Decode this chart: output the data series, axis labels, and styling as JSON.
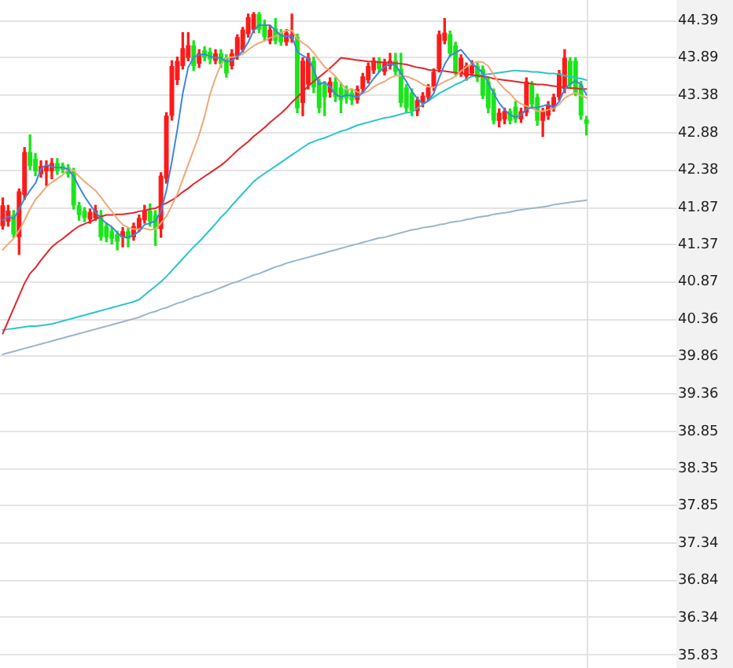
{
  "chart_data": {
    "type": "candlestick",
    "categories": [
      null,
      null,
      null,
      null,
      null,
      null,
      null,
      null,
      null,
      null,
      null,
      null,
      null,
      null,
      null,
      null,
      null,
      null,
      null,
      null,
      null,
      null,
      null,
      null,
      null,
      null,
      null,
      null,
      null,
      null,
      null,
      null,
      null,
      null,
      null,
      null,
      null,
      null,
      null,
      null,
      null,
      null,
      null,
      null,
      null,
      null,
      null,
      null,
      null,
      null,
      null,
      null,
      null,
      null,
      null,
      null,
      null,
      null,
      null,
      null,
      null,
      null,
      null,
      null,
      null,
      null,
      null,
      null,
      null,
      null,
      null,
      null,
      null,
      null,
      null,
      null,
      null,
      null,
      null,
      null,
      null,
      null,
      null,
      null,
      null,
      null,
      null,
      null,
      null,
      null,
      null,
      null,
      null,
      null,
      null,
      null,
      null,
      null,
      null,
      null,
      null,
      null,
      null,
      null,
      null,
      null,
      null,
      null
    ],
    "ohlc": [
      [
        41.62,
        42.0,
        41.58,
        41.9
      ],
      [
        41.68,
        41.9,
        41.62,
        41.83
      ],
      [
        41.77,
        41.83,
        41.47,
        41.51
      ],
      [
        41.47,
        42.12,
        41.24,
        42.09
      ],
      [
        42.04,
        42.68,
        41.98,
        42.62
      ],
      [
        42.62,
        42.85,
        42.38,
        42.43
      ],
      [
        42.53,
        42.6,
        42.3,
        42.36
      ],
      [
        42.32,
        42.5,
        42.28,
        42.43
      ],
      [
        42.36,
        42.5,
        42.17,
        42.43
      ],
      [
        42.36,
        42.53,
        42.26,
        42.47
      ],
      [
        42.47,
        42.53,
        42.32,
        42.36
      ],
      [
        42.43,
        42.47,
        42.34,
        42.38
      ],
      [
        42.41,
        42.45,
        42.28,
        42.32
      ],
      [
        42.36,
        42.4,
        41.85,
        41.9
      ],
      [
        41.9,
        41.94,
        41.7,
        41.77
      ],
      [
        41.83,
        41.87,
        41.68,
        41.73
      ],
      [
        41.71,
        41.85,
        41.66,
        41.81
      ],
      [
        41.73,
        41.9,
        41.7,
        41.83
      ],
      [
        41.77,
        41.83,
        41.43,
        41.47
      ],
      [
        41.62,
        41.66,
        41.41,
        41.47
      ],
      [
        41.55,
        41.6,
        41.38,
        41.45
      ],
      [
        41.51,
        41.55,
        41.3,
        41.41
      ],
      [
        41.47,
        41.6,
        41.34,
        41.55
      ],
      [
        41.55,
        41.6,
        41.34,
        41.45
      ],
      [
        41.47,
        41.66,
        41.43,
        41.62
      ],
      [
        41.58,
        41.77,
        41.55,
        41.73
      ],
      [
        41.7,
        41.9,
        41.66,
        41.83
      ],
      [
        41.83,
        41.92,
        41.62,
        41.68
      ],
      [
        41.77,
        41.83,
        41.36,
        41.58
      ],
      [
        41.58,
        42.34,
        41.47,
        42.3
      ],
      [
        42.26,
        43.15,
        42.2,
        43.11
      ],
      [
        43.11,
        43.85,
        43.05,
        43.78
      ],
      [
        43.59,
        43.9,
        43.53,
        43.85
      ],
      [
        43.78,
        44.23,
        43.74,
        44.02
      ],
      [
        43.89,
        44.23,
        43.85,
        44.06
      ],
      [
        44.06,
        44.12,
        43.72,
        43.78
      ],
      [
        43.81,
        44.0,
        43.76,
        43.95
      ],
      [
        43.99,
        44.04,
        43.85,
        43.89
      ],
      [
        43.97,
        44.02,
        43.81,
        43.87
      ],
      [
        43.85,
        44.0,
        43.81,
        43.95
      ],
      [
        43.95,
        44.0,
        43.76,
        43.81
      ],
      [
        43.89,
        43.93,
        43.63,
        43.68
      ],
      [
        43.78,
        44.0,
        43.74,
        43.95
      ],
      [
        43.91,
        44.2,
        43.87,
        44.17
      ],
      [
        44.0,
        44.3,
        43.97,
        44.27
      ],
      [
        44.21,
        44.48,
        44.17,
        44.44
      ],
      [
        44.27,
        44.5,
        44.23,
        44.48
      ],
      [
        44.48,
        44.5,
        44.23,
        44.27
      ],
      [
        44.34,
        44.4,
        44.12,
        44.17
      ],
      [
        44.12,
        44.32,
        44.08,
        44.27
      ],
      [
        44.29,
        44.42,
        44.08,
        44.12
      ],
      [
        44.23,
        44.27,
        44.06,
        44.1
      ],
      [
        44.1,
        44.27,
        44.06,
        44.23
      ],
      [
        44.15,
        44.48,
        44.1,
        44.21
      ],
      [
        44.17,
        44.21,
        43.15,
        43.21
      ],
      [
        43.28,
        43.89,
        43.11,
        43.85
      ],
      [
        43.53,
        43.95,
        43.47,
        43.89
      ],
      [
        43.85,
        43.9,
        43.42,
        43.49
      ],
      [
        43.57,
        43.6,
        43.15,
        43.21
      ],
      [
        43.53,
        43.57,
        43.11,
        43.36
      ],
      [
        43.42,
        43.62,
        43.36,
        43.57
      ],
      [
        43.57,
        43.62,
        43.3,
        43.36
      ],
      [
        43.49,
        43.55,
        43.15,
        43.32
      ],
      [
        43.47,
        43.51,
        43.28,
        43.34
      ],
      [
        43.42,
        43.47,
        43.26,
        43.32
      ],
      [
        43.32,
        43.51,
        43.28,
        43.47
      ],
      [
        43.47,
        43.68,
        43.42,
        43.64
      ],
      [
        43.59,
        43.82,
        43.55,
        43.78
      ],
      [
        43.72,
        43.89,
        43.68,
        43.85
      ],
      [
        43.85,
        43.89,
        43.7,
        43.74
      ],
      [
        43.7,
        43.87,
        43.66,
        43.82
      ],
      [
        43.78,
        43.95,
        43.74,
        43.85
      ],
      [
        43.85,
        43.95,
        43.66,
        43.7
      ],
      [
        43.74,
        43.95,
        43.23,
        43.28
      ],
      [
        43.49,
        43.53,
        43.15,
        43.21
      ],
      [
        43.42,
        43.47,
        43.11,
        43.17
      ],
      [
        43.17,
        43.36,
        43.11,
        43.32
      ],
      [
        43.28,
        43.42,
        43.23,
        43.38
      ],
      [
        43.36,
        43.53,
        43.32,
        43.49
      ],
      [
        43.49,
        43.74,
        43.45,
        43.7
      ],
      [
        43.74,
        44.25,
        43.7,
        44.21
      ],
      [
        44.12,
        44.42,
        44.08,
        44.23
      ],
      [
        44.21,
        44.25,
        43.91,
        43.95
      ],
      [
        44.06,
        44.1,
        43.66,
        43.7
      ],
      [
        43.68,
        43.93,
        43.64,
        43.89
      ],
      [
        43.64,
        43.82,
        43.59,
        43.78
      ],
      [
        43.68,
        43.85,
        43.64,
        43.78
      ],
      [
        43.78,
        43.82,
        43.57,
        43.62
      ],
      [
        43.74,
        43.78,
        43.34,
        43.38
      ],
      [
        43.57,
        43.62,
        43.15,
        43.21
      ],
      [
        43.42,
        43.47,
        43.0,
        43.04
      ],
      [
        43.04,
        43.2,
        42.96,
        43.15
      ],
      [
        43.06,
        43.21,
        43.0,
        43.17
      ],
      [
        43.17,
        43.2,
        43.0,
        43.04
      ],
      [
        43.23,
        43.3,
        43.02,
        43.06
      ],
      [
        43.06,
        43.21,
        43.02,
        43.17
      ],
      [
        43.15,
        43.62,
        43.11,
        43.57
      ],
      [
        43.53,
        43.57,
        43.21,
        43.26
      ],
      [
        43.36,
        43.4,
        42.98,
        43.04
      ],
      [
        43.04,
        43.21,
        42.83,
        43.17
      ],
      [
        43.11,
        43.3,
        43.06,
        43.26
      ],
      [
        43.21,
        43.4,
        43.17,
        43.36
      ],
      [
        43.36,
        43.72,
        43.32,
        43.68
      ],
      [
        43.47,
        44.0,
        43.42,
        43.89
      ],
      [
        43.85,
        43.89,
        43.49,
        43.53
      ],
      [
        43.85,
        43.89,
        43.38,
        43.42
      ],
      [
        43.53,
        43.57,
        43.06,
        43.11
      ],
      [
        43.06,
        43.1,
        42.85,
        43.0
      ]
    ],
    "colors": [
      "#ff1a1a",
      "#ff1a1a",
      "#19e619",
      "#ff1a1a",
      "#ff1a1a",
      "#19e619",
      "#19e619",
      "#ff1a1a",
      "#ff1a1a",
      "#ff1a1a",
      "#19e619",
      "#19e619",
      "#19e619",
      "#19e619",
      "#19e619",
      "#19e619",
      "#ff1a1a",
      "#ff1a1a",
      "#19e619",
      "#19e619",
      "#19e619",
      "#19e619",
      "#ff1a1a",
      "#19e619",
      "#ff1a1a",
      "#ff1a1a",
      "#ff1a1a",
      "#19e619",
      "#19e619",
      "#ff1a1a",
      "#ff1a1a",
      "#ff1a1a",
      "#ff1a1a",
      "#ff1a1a",
      "#ff1a1a",
      "#19e619",
      "#ff1a1a",
      "#19e619",
      "#19e619",
      "#ff1a1a",
      "#19e619",
      "#19e619",
      "#ff1a1a",
      "#ff1a1a",
      "#ff1a1a",
      "#ff1a1a",
      "#ff1a1a",
      "#19e619",
      "#19e619",
      "#ff1a1a",
      "#19e619",
      "#19e619",
      "#ff1a1a",
      "#ff1a1a",
      "#19e619",
      "#ff1a1a",
      "#ff1a1a",
      "#19e619",
      "#19e619",
      "#19e619",
      "#ff1a1a",
      "#19e619",
      "#19e619",
      "#19e619",
      "#19e619",
      "#ff1a1a",
      "#ff1a1a",
      "#ff1a1a",
      "#ff1a1a",
      "#19e619",
      "#ff1a1a",
      "#ff1a1a",
      "#19e619",
      "#19e619",
      "#19e619",
      "#19e619",
      "#ff1a1a",
      "#ff1a1a",
      "#ff1a1a",
      "#ff1a1a",
      "#ff1a1a",
      "#ff1a1a",
      "#19e619",
      "#19e619",
      "#ff1a1a",
      "#ff1a1a",
      "#ff1a1a",
      "#19e619",
      "#19e619",
      "#19e619",
      "#19e619",
      "#ff1a1a",
      "#ff1a1a",
      "#19e619",
      "#19e619",
      "#ff1a1a",
      "#ff1a1a",
      "#19e619",
      "#19e619",
      "#ff1a1a",
      "#ff1a1a",
      "#ff1a1a",
      "#ff1a1a",
      "#ff1a1a",
      "#19e619",
      "#19e619",
      "#19e619",
      "#19e619"
    ],
    "series": [
      {
        "type": "line",
        "color": "#3d85e0",
        "values": [
          41.7,
          41.75,
          41.72,
          41.85,
          41.99,
          42.1,
          42.2,
          42.39,
          42.45,
          42.42,
          42.41,
          42.41,
          42.39,
          42.29,
          42.15,
          42.02,
          41.91,
          41.81,
          41.72,
          41.66,
          41.61,
          41.53,
          41.47,
          41.47,
          41.5,
          41.55,
          41.64,
          41.66,
          41.69,
          41.82,
          42.1,
          42.49,
          42.92,
          43.41,
          43.76,
          43.9,
          43.93,
          43.94,
          43.91,
          43.89,
          43.89,
          43.84,
          43.85,
          43.91,
          43.98,
          44.1,
          44.26,
          44.33,
          44.33,
          44.33,
          44.26,
          44.19,
          44.18,
          44.19,
          43.97,
          43.92,
          43.88,
          43.73,
          43.53,
          43.56,
          43.5,
          43.4,
          43.36,
          43.39,
          43.38,
          43.36,
          43.42,
          43.51,
          43.61,
          43.7,
          43.77,
          43.81,
          43.79,
          43.68,
          43.57,
          43.44,
          43.34,
          43.27,
          43.31,
          43.41,
          43.62,
          43.8,
          43.92,
          43.96,
          44.0,
          43.91,
          43.82,
          43.75,
          43.69,
          43.55,
          43.41,
          43.28,
          43.19,
          43.12,
          43.09,
          43.12,
          43.2,
          43.22,
          43.22,
          43.24,
          43.26,
          43.22,
          43.3,
          43.47,
          43.54,
          43.58,
          43.53,
          43.39
        ]
      },
      {
        "type": "line",
        "color": "#f0a878",
        "values": [
          41.3,
          41.38,
          41.45,
          41.56,
          41.7,
          41.85,
          41.98,
          42.06,
          42.15,
          42.21,
          42.26,
          42.31,
          42.39,
          42.37,
          42.29,
          42.22,
          42.16,
          42.1,
          42.01,
          41.91,
          41.82,
          41.72,
          41.64,
          41.6,
          41.58,
          41.58,
          41.59,
          41.57,
          41.58,
          41.66,
          41.75,
          41.9,
          42.05,
          42.25,
          42.45,
          42.65,
          42.85,
          43.1,
          43.4,
          43.62,
          43.8,
          43.89,
          43.9,
          43.91,
          43.94,
          44.0,
          44.05,
          44.09,
          44.12,
          44.16,
          44.18,
          44.23,
          44.26,
          44.26,
          44.15,
          44.09,
          44.04,
          43.96,
          43.86,
          43.77,
          43.71,
          43.64,
          43.55,
          43.46,
          43.47,
          43.43,
          43.41,
          43.44,
          43.5,
          43.54,
          43.57,
          43.62,
          43.65,
          43.65,
          43.64,
          43.61,
          43.58,
          43.53,
          43.5,
          43.49,
          43.53,
          43.57,
          43.6,
          43.64,
          43.71,
          43.77,
          43.81,
          43.84,
          43.83,
          43.78,
          43.66,
          43.55,
          43.47,
          43.41,
          43.32,
          43.27,
          43.24,
          43.21,
          43.17,
          43.17,
          43.19,
          43.21,
          43.26,
          43.35,
          43.39,
          43.42,
          43.38,
          43.35
        ]
      },
      {
        "type": "line",
        "color": "#e3262a",
        "values": [
          40.17,
          40.34,
          40.51,
          40.68,
          40.85,
          40.98,
          41.06,
          41.16,
          41.25,
          41.34,
          41.4,
          41.45,
          41.51,
          41.57,
          41.62,
          41.65,
          41.68,
          41.71,
          41.75,
          41.77,
          41.77,
          41.78,
          41.78,
          41.79,
          41.8,
          41.82,
          41.83,
          41.85,
          41.86,
          41.9,
          41.93,
          41.97,
          42.02,
          42.08,
          42.13,
          42.19,
          42.24,
          42.29,
          42.34,
          42.39,
          42.44,
          42.5,
          42.57,
          42.64,
          42.7,
          42.76,
          42.83,
          42.89,
          42.95,
          43.02,
          43.08,
          43.14,
          43.21,
          43.29,
          43.36,
          43.43,
          43.51,
          43.57,
          43.63,
          43.69,
          43.75,
          43.82,
          43.89,
          43.88,
          43.87,
          43.86,
          43.85,
          43.84,
          43.84,
          43.83,
          43.83,
          43.82,
          43.82,
          43.81,
          43.8,
          43.78,
          43.76,
          43.75,
          43.73,
          43.72,
          43.72,
          43.71,
          43.7,
          43.69,
          43.68,
          43.67,
          43.66,
          43.65,
          43.64,
          43.63,
          43.61,
          43.6,
          43.59,
          43.58,
          43.57,
          43.56,
          43.55,
          43.54,
          43.53,
          43.53,
          43.52,
          43.51,
          43.5,
          43.49,
          43.48,
          43.48,
          43.47,
          43.47
        ]
      },
      {
        "type": "line",
        "color": "#29c5cc",
        "values": [
          40.22,
          40.23,
          40.24,
          40.25,
          40.26,
          40.27,
          40.27,
          40.28,
          40.29,
          40.3,
          40.32,
          40.34,
          40.36,
          40.38,
          40.4,
          40.42,
          40.44,
          40.46,
          40.48,
          40.5,
          40.52,
          40.54,
          40.56,
          40.58,
          40.6,
          40.63,
          40.69,
          40.75,
          40.81,
          40.87,
          40.94,
          41.02,
          41.1,
          41.18,
          41.26,
          41.34,
          41.41,
          41.49,
          41.57,
          41.65,
          41.74,
          41.81,
          41.9,
          41.98,
          42.06,
          42.14,
          42.22,
          42.28,
          42.33,
          42.38,
          42.43,
          42.48,
          42.53,
          42.58,
          42.63,
          42.68,
          42.73,
          42.76,
          42.79,
          42.81,
          42.84,
          42.87,
          42.9,
          42.92,
          42.95,
          42.98,
          43.0,
          43.02,
          43.04,
          43.06,
          43.08,
          43.09,
          43.11,
          43.13,
          43.15,
          43.16,
          43.21,
          43.26,
          43.31,
          43.36,
          43.41,
          43.45,
          43.49,
          43.53,
          43.56,
          43.6,
          43.64,
          43.65,
          43.66,
          43.67,
          43.68,
          43.69,
          43.7,
          43.71,
          43.72,
          43.71,
          43.71,
          43.7,
          43.7,
          43.69,
          43.68,
          43.68,
          43.67,
          43.65,
          43.64,
          43.62,
          43.61,
          43.59
        ]
      },
      {
        "type": "line",
        "color": "#9bb5c9",
        "values": [
          39.89,
          39.91,
          39.93,
          39.95,
          39.97,
          39.99,
          40.01,
          40.03,
          40.05,
          40.07,
          40.09,
          40.11,
          40.13,
          40.15,
          40.17,
          40.19,
          40.21,
          40.23,
          40.25,
          40.27,
          40.29,
          40.31,
          40.33,
          40.35,
          40.37,
          40.39,
          40.42,
          40.45,
          40.47,
          40.5,
          40.52,
          40.55,
          40.58,
          40.6,
          40.63,
          40.66,
          40.68,
          40.71,
          40.73,
          40.76,
          40.79,
          40.82,
          40.85,
          40.87,
          40.9,
          40.93,
          40.96,
          40.98,
          41.01,
          41.04,
          41.07,
          41.09,
          41.12,
          41.14,
          41.16,
          41.18,
          41.2,
          41.22,
          41.24,
          41.26,
          41.28,
          41.3,
          41.32,
          41.34,
          41.36,
          41.38,
          41.4,
          41.42,
          41.44,
          41.46,
          41.47,
          41.49,
          41.51,
          41.53,
          41.55,
          41.57,
          41.58,
          41.6,
          41.61,
          41.62,
          41.64,
          41.65,
          41.67,
          41.68,
          41.69,
          41.71,
          41.72,
          41.74,
          41.75,
          41.76,
          41.78,
          41.79,
          41.8,
          41.81,
          41.83,
          41.84,
          41.85,
          41.86,
          41.87,
          41.88,
          41.89,
          41.91,
          41.92,
          41.93,
          41.94,
          41.95,
          41.96,
          41.97
        ]
      }
    ],
    "ylim": [
      35.66,
      44.67
    ],
    "yticks": [
      35.83,
      36.34,
      36.84,
      37.34,
      37.85,
      38.35,
      38.85,
      39.36,
      39.86,
      40.36,
      40.87,
      41.37,
      41.87,
      42.38,
      42.88,
      43.38,
      43.89,
      44.39
    ],
    "grid": "y",
    "tick_labels": "y"
  }
}
